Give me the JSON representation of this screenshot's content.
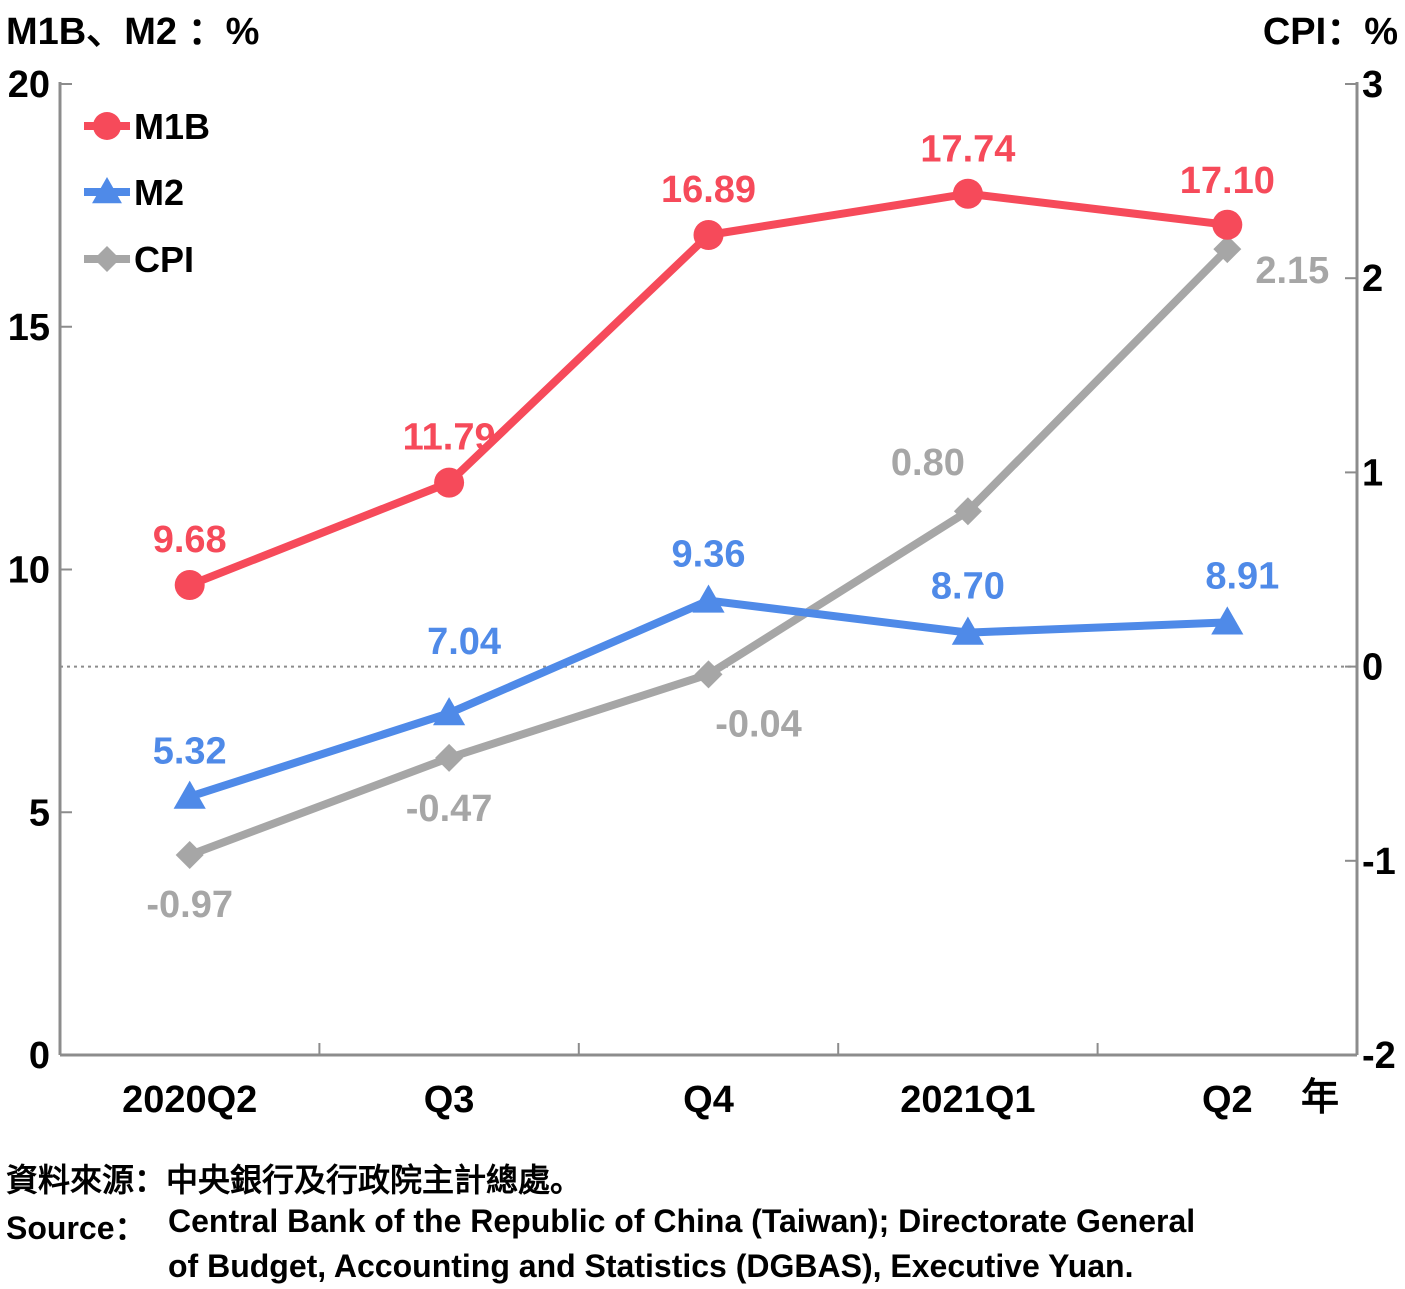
{
  "chart_data": {
    "type": "line",
    "categories": [
      "2020Q2",
      "Q3",
      "Q4",
      "2021Q1",
      "Q2"
    ],
    "x_unit": "年",
    "left_axis": {
      "label": "M1B、M2 ：%",
      "min": 0,
      "max": 20,
      "ticks": [
        0,
        5,
        10,
        15,
        20
      ]
    },
    "right_axis": {
      "label": "CPI：%",
      "min": -2,
      "max": 3,
      "ticks": [
        -2,
        -1,
        0,
        1,
        2,
        3
      ]
    },
    "series": [
      {
        "name": "M1B",
        "axis": "left",
        "color": "#f64a5a",
        "marker": "circle",
        "values": [
          9.68,
          11.79,
          16.89,
          17.74,
          17.1
        ],
        "labels": [
          "9.68",
          "11.79",
          "16.89",
          "17.74",
          "17.10"
        ]
      },
      {
        "name": "M2",
        "axis": "left",
        "color": "#4f8ae8",
        "marker": "triangle",
        "values": [
          5.32,
          7.04,
          9.36,
          8.7,
          8.91
        ],
        "labels": [
          "5.32",
          "7.04",
          "9.36",
          "8.70",
          "8.91"
        ]
      },
      {
        "name": "CPI",
        "axis": "right",
        "color": "#a6a6a6",
        "marker": "diamond",
        "values": [
          -0.97,
          -0.47,
          -0.04,
          0.8,
          2.15
        ],
        "labels": [
          "-0.97",
          "-0.47",
          "-0.04",
          "0.80",
          "2.15"
        ]
      }
    ],
    "zero_line": {
      "axis": "right",
      "value": 0,
      "style": "dotted"
    },
    "legend_position": "top-left",
    "grid": false
  },
  "source": {
    "zh": "資料來源：中央銀行及行政院主計總處。",
    "en_label": "Source：",
    "en_line1": "Central Bank of the Republic of China (Taiwan); Directorate General",
    "en_line2": "of Budget, Accounting and Statistics (DGBAS), Executive Yuan."
  }
}
